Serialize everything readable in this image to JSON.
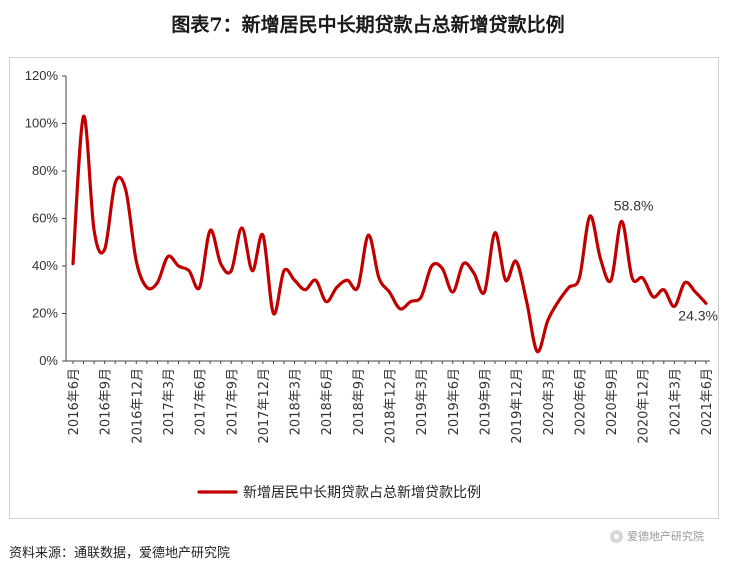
{
  "title": "图表7：新增居民中长期贷款占总新增贷款比例",
  "source": "资料来源：通联数据，爱德地产研究院",
  "watermark": "爱德地产研究院",
  "chart_data": {
    "type": "line",
    "title": "图表7：新增居民中长期贷款占总新增贷款比例",
    "xlabel": "",
    "ylabel": "",
    "ylim": [
      0,
      120
    ],
    "yticks": [
      "0%",
      "20%",
      "40%",
      "60%",
      "80%",
      "100%",
      "120%"
    ],
    "ytick_values": [
      0,
      20,
      40,
      60,
      80,
      100,
      120
    ],
    "x_tick_labels": [
      "2016年6月",
      "2016年9月",
      "2016年12月",
      "2017年3月",
      "2017年6月",
      "2017年9月",
      "2017年12月",
      "2018年3月",
      "2018年6月",
      "2018年9月",
      "2018年12月",
      "2019年3月",
      "2019年6月",
      "2019年9月",
      "2019年12月",
      "2020年3月",
      "2020年6月",
      "2020年9月",
      "2020年12月",
      "2021年3月",
      "2021年6月"
    ],
    "legend": "bottom",
    "line_color": "#c00000",
    "series": [
      {
        "name": "新增居民中长期贷款占总新增贷款比例",
        "values": [
          41,
          103,
          55,
          47,
          75,
          72,
          42,
          31,
          33,
          44,
          40,
          38,
          31,
          55,
          41,
          38,
          56,
          38,
          53,
          20,
          38,
          34,
          30,
          34,
          25,
          31,
          34,
          31,
          53,
          35,
          29,
          22,
          25,
          27,
          40,
          39,
          29,
          41,
          37,
          29,
          54,
          34,
          42,
          25,
          4,
          17,
          25,
          31,
          35,
          61,
          43,
          34,
          58.8,
          35,
          35,
          27,
          30,
          23,
          33,
          29,
          24.3
        ]
      }
    ],
    "annotations": [
      {
        "label": "58.8%",
        "index": 52,
        "value": 58.8
      },
      {
        "label": "24.3%",
        "index": 60,
        "value": 24.3
      }
    ]
  }
}
